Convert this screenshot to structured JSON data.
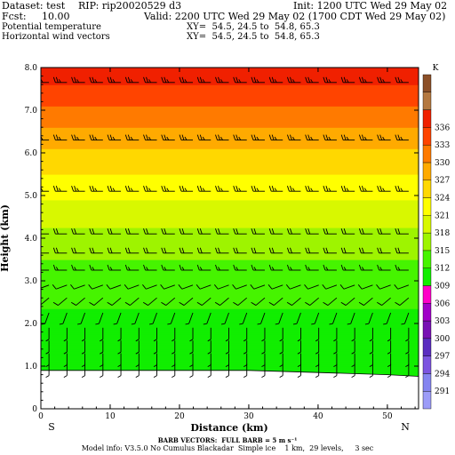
{
  "header": {
    "dataset": "Dataset: test",
    "rip": "RIP: rip20020529 d3",
    "init": "Init: 1200 UTC Wed 29 May 02",
    "fcst": "Fcst:     10.00",
    "valid": "Valid: 2200 UTC Wed 29 May 02 (1700 CDT Wed 29 May 02)",
    "field1": "Potential temperature",
    "field2": "Horizontal wind vectors",
    "xy1": "XY=  54.5, 24.5 to  54.8, 65.3",
    "xy2": "XY=  54.5, 24.5 to  54.8, 65.3"
  },
  "footer": {
    "barb_note": "BARB VECTORS:  FULL BARB = 5 m s⁻¹",
    "model_info": "Model info: V3.5.0 No Cumulus Blackadar  Simple ice    1 km,  29 levels,     3 sec"
  },
  "colors": {
    "background": "#ffffff",
    "terrain": "#ffffff",
    "barb": "#000000"
  },
  "chart_data": {
    "type": "heatmap",
    "title": "",
    "xlabel": "Distance (km)",
    "ylabel": "Height (km)",
    "xlim": [
      0,
      54.5
    ],
    "ylim": [
      0,
      8
    ],
    "xticks": [
      "0",
      "10",
      "20",
      "30",
      "40",
      "50"
    ],
    "xtick_values": [
      0,
      10,
      20,
      30,
      40,
      50
    ],
    "yticks": [
      "0",
      "1.0",
      "2.0",
      "3.0",
      "4.0",
      "5.0",
      "6.0",
      "7.0",
      "8.0"
    ],
    "ytick_values": [
      0,
      1,
      2,
      3,
      4,
      5,
      6,
      7,
      8
    ],
    "end_labels": {
      "left": "S",
      "right": "N"
    },
    "colorbar": {
      "unit": "K",
      "levels": [
        291,
        294,
        297,
        300,
        303,
        306,
        309,
        312,
        315,
        318,
        321,
        324,
        327,
        330,
        333,
        336
      ],
      "colors": [
        "#9c9cf8",
        "#8484f0",
        "#7c54e0",
        "#5a2cc0",
        "#7810b4",
        "#a000c8",
        "#ff00c8",
        "#11ee00",
        "#46f400",
        "#9ef400",
        "#d8f800",
        "#ffff00",
        "#ffd800",
        "#ffaa00",
        "#ff7a00",
        "#ff4400",
        "#f02000",
        "#b47840",
        "#8c5028"
      ]
    },
    "theta_profile_K": [
      {
        "height_km": 1.0,
        "theta": 310.5
      },
      {
        "height_km": 1.5,
        "theta": 311
      },
      {
        "height_km": 2.0,
        "theta": 311.5
      },
      {
        "height_km": 2.5,
        "theta": 312.2
      },
      {
        "height_km": 3.0,
        "theta": 313.5
      },
      {
        "height_km": 3.5,
        "theta": 315
      },
      {
        "height_km": 4.0,
        "theta": 317
      },
      {
        "height_km": 4.5,
        "theta": 319
      },
      {
        "height_km": 5.0,
        "theta": 321.5
      },
      {
        "height_km": 5.5,
        "theta": 324
      },
      {
        "height_km": 6.0,
        "theta": 326.5
      },
      {
        "height_km": 6.5,
        "theta": 329.5
      },
      {
        "height_km": 7.0,
        "theta": 332.5
      },
      {
        "height_km": 7.5,
        "theta": 335.5
      },
      {
        "height_km": 8.0,
        "theta": 338
      }
    ],
    "terrain_km": [
      {
        "x_km": 0,
        "z_km": 0.9
      },
      {
        "x_km": 30,
        "z_km": 0.9
      },
      {
        "x_km": 40,
        "z_km": 0.85
      },
      {
        "x_km": 50,
        "z_km": 0.8
      },
      {
        "x_km": 54.5,
        "z_km": 0.76
      }
    ],
    "wind_barb_rows": [
      {
        "height_km": 7.65,
        "speed_ms": 12.5,
        "dir_deg": 270
      },
      {
        "height_km": 6.3,
        "speed_ms": 12.5,
        "dir_deg": 270
      },
      {
        "height_km": 5.1,
        "speed_ms": 12.5,
        "dir_deg": 270
      },
      {
        "height_km": 4.1,
        "speed_ms": 10,
        "dir_deg": 270
      },
      {
        "height_km": 3.65,
        "speed_ms": 10,
        "dir_deg": 270
      },
      {
        "height_km": 3.25,
        "speed_ms": 7.5,
        "dir_deg": 270
      },
      {
        "height_km": 2.9,
        "speed_ms": 5,
        "dir_deg": 250
      },
      {
        "height_km": 2.6,
        "speed_ms": 5,
        "dir_deg": 230
      },
      {
        "height_km": 2.25,
        "speed_ms": 2.5,
        "dir_deg": 200
      },
      {
        "height_km": 1.9,
        "speed_ms": 2.5,
        "dir_deg": 180
      },
      {
        "height_km": 1.6,
        "speed_ms": 2.5,
        "dir_deg": 180
      },
      {
        "height_km": 1.3,
        "speed_ms": 2.5,
        "dir_deg": 180
      },
      {
        "height_km": 1.05,
        "speed_ms": 2.5,
        "dir_deg": 180
      }
    ],
    "barb_columns": 21
  }
}
